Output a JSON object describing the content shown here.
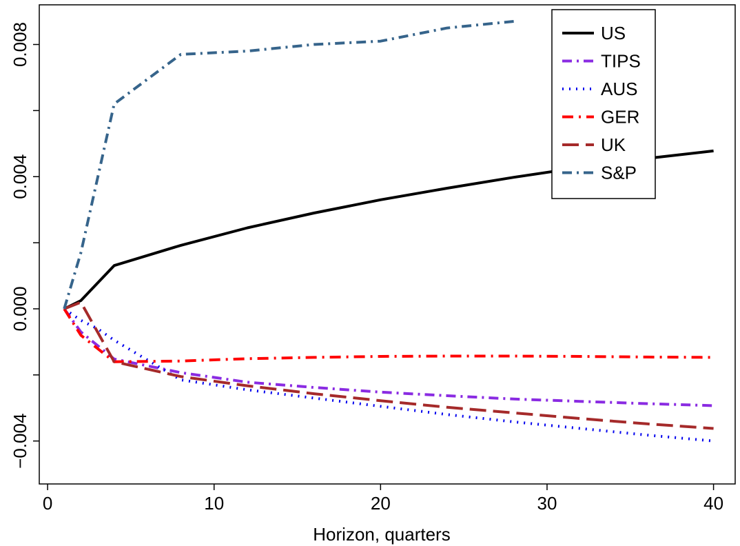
{
  "chart_data": {
    "type": "line",
    "title": "",
    "xlabel": "Horizon, quarters",
    "ylabel": "",
    "xlim": [
      -0.5,
      41.3
    ],
    "ylim": [
      -0.0053,
      0.0092
    ],
    "xticks": [
      0,
      10,
      20,
      30,
      40
    ],
    "xtick_labels": [
      "0",
      "10",
      "20",
      "30",
      "40"
    ],
    "yticks": [
      -0.004,
      -0.002,
      0.0,
      0.002,
      0.004,
      0.006,
      0.008
    ],
    "ytick_labels": [
      "−0.004",
      "",
      "0.000",
      "",
      "0.004",
      "",
      "0.008"
    ],
    "grid": false,
    "legend_position": "top-right",
    "series": [
      {
        "name": "US",
        "color": "#000000",
        "dash": "solid",
        "width": 4,
        "x": [
          1,
          2,
          4,
          8,
          12,
          16,
          20,
          24,
          28,
          32,
          36,
          40
        ],
        "y": [
          0.0,
          0.00025,
          0.00131,
          0.00192,
          0.00245,
          0.0029,
          0.0033,
          0.00365,
          0.00398,
          0.00428,
          0.00455,
          0.00478
        ]
      },
      {
        "name": "TIPS",
        "color": "#8A2BE2",
        "dash": "dashdot",
        "width": 4,
        "x": [
          1,
          2,
          4,
          8,
          12,
          16,
          20,
          24,
          28,
          32,
          36,
          40
        ],
        "y": [
          0.0,
          -0.0007,
          -0.00152,
          -0.00193,
          -0.00222,
          -0.00238,
          -0.00252,
          -0.00263,
          -0.00273,
          -0.0028,
          -0.00287,
          -0.00293
        ]
      },
      {
        "name": "AUS",
        "color": "#0000EE",
        "dash": "dotted",
        "width": 4,
        "x": [
          1,
          2,
          3,
          4,
          8,
          12,
          16,
          20,
          24,
          28,
          32,
          36,
          40
        ],
        "y": [
          0.0,
          -0.00035,
          -0.0006,
          -0.00095,
          -0.00215,
          -0.00245,
          -0.0027,
          -0.00295,
          -0.0032,
          -0.00342,
          -0.00362,
          -0.00382,
          -0.004
        ]
      },
      {
        "name": "GER",
        "color": "#FF0000",
        "dash": "dashdot-long",
        "width": 4,
        "x": [
          1,
          2,
          4,
          8,
          12,
          16,
          20,
          24,
          28,
          32,
          36,
          40
        ],
        "y": [
          0.0,
          -0.0008,
          -0.0016,
          -0.00158,
          -0.00151,
          -0.00147,
          -0.00144,
          -0.00143,
          -0.00143,
          -0.00144,
          -0.00146,
          -0.00147
        ]
      },
      {
        "name": "UK",
        "color": "#A52A2A",
        "dash": "longdash",
        "width": 4,
        "x": [
          1,
          2,
          4,
          8,
          12,
          16,
          20,
          24,
          28,
          32,
          36,
          40
        ],
        "y": [
          0.0,
          0.0002,
          -0.0016,
          -0.00205,
          -0.00233,
          -0.00257,
          -0.00278,
          -0.00298,
          -0.00315,
          -0.00332,
          -0.00348,
          -0.00362
        ]
      },
      {
        "name": "S&P",
        "color": "#36648B",
        "dash": "dashdot",
        "width": 4,
        "x": [
          1,
          2,
          4,
          8,
          12,
          16,
          20,
          24,
          28
        ],
        "y": [
          0.0,
          0.0017,
          0.0062,
          0.0077,
          0.0078,
          0.008,
          0.0081,
          0.0085,
          0.0087
        ]
      }
    ]
  }
}
